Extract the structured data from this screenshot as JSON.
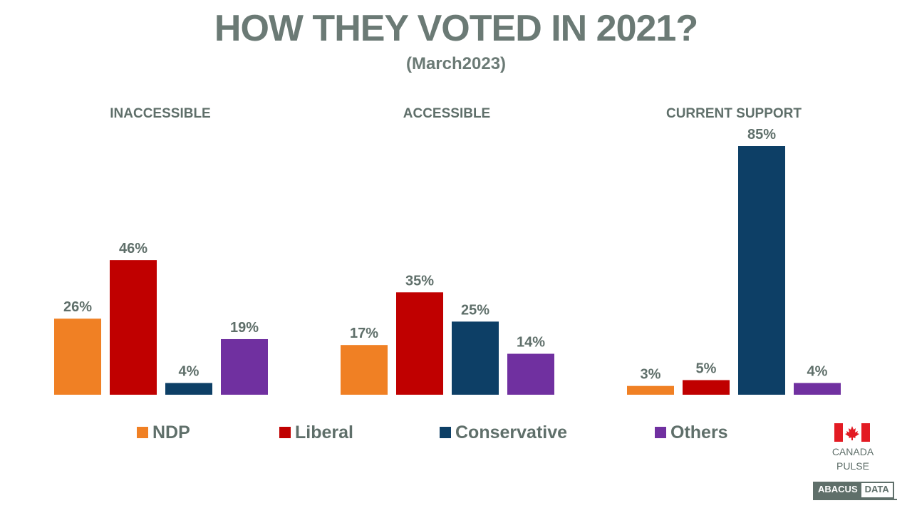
{
  "title": "HOW THEY VOTED IN 2021?",
  "subtitle": "(March2023)",
  "colors": {
    "NDP": "#f08024",
    "Liberal": "#c00000",
    "Conservative": "#0d3f66",
    "Others": "#7030a0",
    "text": "#5f6f6a"
  },
  "chart_data": {
    "type": "bar",
    "groups": [
      "INACCESSIBLE",
      "ACCESSIBLE",
      "CURRENT SUPPORT"
    ],
    "series": [
      {
        "name": "NDP",
        "values": [
          26,
          17,
          3
        ]
      },
      {
        "name": "Liberal",
        "values": [
          46,
          35,
          5
        ]
      },
      {
        "name": "Conservative",
        "values": [
          4,
          25,
          85
        ]
      },
      {
        "name": "Others",
        "values": [
          19,
          14,
          4
        ]
      }
    ],
    "value_suffix": "%",
    "ylim": [
      0,
      85
    ],
    "grid": false,
    "legend": "bottom"
  },
  "legend": [
    {
      "name": "NDP"
    },
    {
      "name": "Liberal"
    },
    {
      "name": "Conservative"
    },
    {
      "name": "Others"
    }
  ],
  "brand": {
    "canada_pulse_line1": "CANADA",
    "canada_pulse_line2": "PULSE",
    "abacus_part1": "ABACUS",
    "abacus_part2": "DATA"
  }
}
